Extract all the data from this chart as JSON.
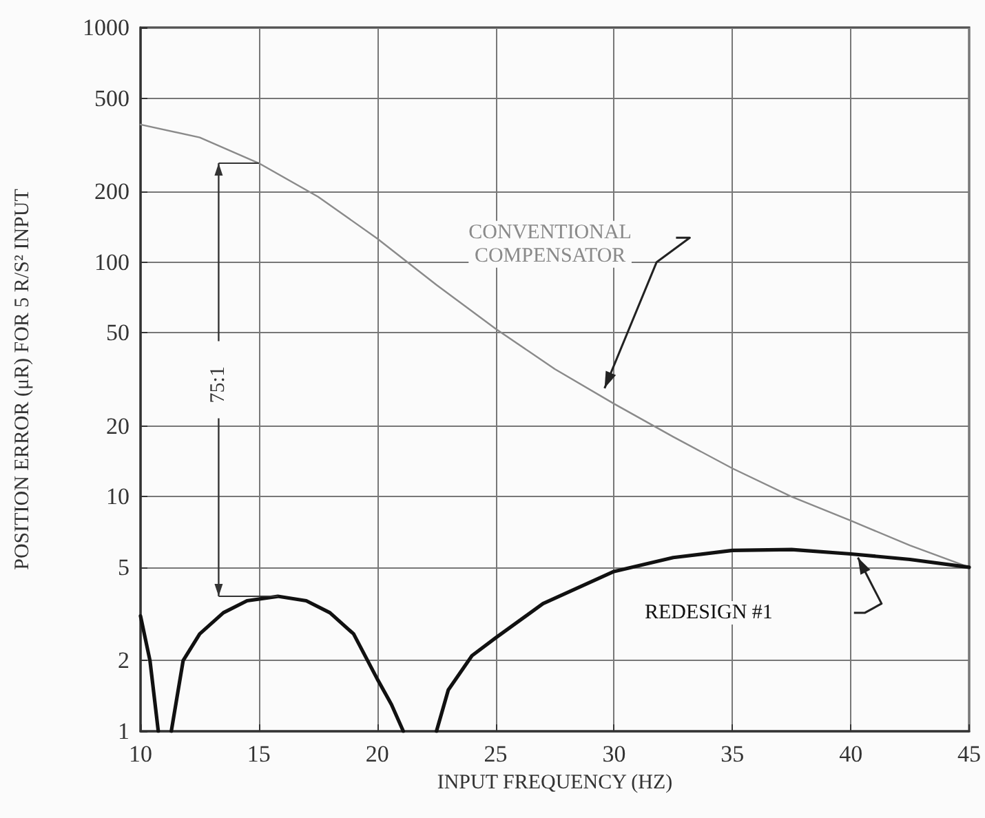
{
  "chart_data": {
    "type": "line",
    "xlabel": "INPUT FREQUENCY (HZ)",
    "ylabel": "POSITION ERROR (μR) FOR 5 R/S² INPUT",
    "log": "y",
    "grid": true,
    "marker": "none",
    "line_style": "solid",
    "xlim": [
      10,
      45
    ],
    "xticks": [
      10,
      15,
      20,
      25,
      30,
      35,
      40,
      45
    ],
    "ylim": [
      1,
      1000
    ],
    "yticks": [
      1,
      2,
      5,
      10,
      20,
      50,
      100,
      200,
      500,
      1000
    ],
    "series": [
      {
        "name": "CONVENTIONAL COMPENSATOR",
        "color": "#8a8a8a",
        "x": [
          10,
          12.5,
          15,
          17.5,
          20,
          22.5,
          25,
          27.5,
          30,
          32.5,
          35,
          37.5,
          40,
          42.5,
          45
        ],
        "values": [
          386,
          340,
          264,
          190,
          126,
          80,
          52,
          35,
          24.9,
          18,
          13.2,
          10,
          7.9,
          6.2,
          5.0
        ]
      },
      {
        "name": "REDESIGN #1",
        "color": "#111111",
        "x": [
          10,
          10.4,
          10.75,
          11,
          11.3,
          11.8,
          12.5,
          13.5,
          14.5,
          15.8,
          17,
          18,
          19,
          20,
          20.6,
          21.1,
          21.8,
          22.5,
          23,
          24,
          25,
          27,
          30,
          32.5,
          35,
          37.5,
          40,
          42.5,
          45
        ],
        "values": [
          3.1,
          2,
          1,
          null,
          1,
          2,
          2.6,
          3.2,
          3.6,
          3.76,
          3.6,
          3.2,
          2.6,
          1.67,
          1.3,
          1,
          null,
          1,
          1.5,
          2.1,
          2.5,
          3.5,
          4.8,
          5.5,
          5.9,
          5.95,
          5.7,
          5.4,
          5.0
        ]
      }
    ],
    "annotations": [
      {
        "text": "75:1",
        "x": 13.3,
        "y": 30
      }
    ]
  }
}
